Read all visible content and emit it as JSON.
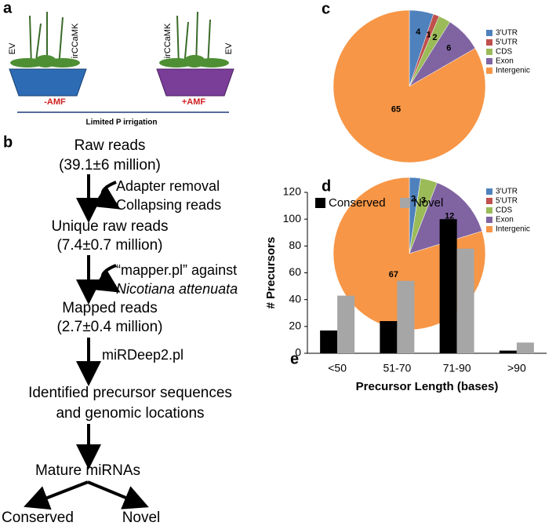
{
  "panel_labels": [
    "a",
    "b",
    "c",
    "d",
    "e"
  ],
  "panel_a": {
    "left_plants": [
      "EV",
      "irCCaMK"
    ],
    "right_plants": [
      "irCCaMK",
      "EV"
    ],
    "left_condition": "-AMF",
    "right_condition": "+AMF",
    "footer": "Limited P irrigation"
  },
  "panel_b": {
    "raw": [
      "Raw reads",
      "(39.1±6 million)"
    ],
    "step1": [
      "Adapter removal",
      "Collapsing reads"
    ],
    "unique": [
      "Unique raw reads",
      "(7.4±0.7 million)"
    ],
    "step2": [
      "“mapper.pl” against",
      "Nicotiana attenuata"
    ],
    "mapped": [
      "Mapped reads",
      "(2.7±0.4 million)"
    ],
    "step3": "miRDeep2.pl",
    "identified": [
      "Identified precursor sequences",
      "and genomic locations"
    ],
    "mature": "Mature miRNAs",
    "branches": [
      "Conserved",
      "Novel"
    ]
  },
  "chart_data": [
    {
      "type": "pie",
      "categories": [
        "3'UTR",
        "5'UTR",
        "CDS",
        "Exon",
        "Intergenic"
      ],
      "values": [
        4,
        1,
        2,
        6,
        65
      ],
      "colors": [
        "#4f81bd",
        "#c0504d",
        "#9bbb59",
        "#8064a2",
        "#f79646"
      ]
    },
    {
      "type": "pie",
      "categories": [
        "3'UTR",
        "5'UTR",
        "CDS",
        "Exon",
        "Intergenic"
      ],
      "values": [
        2,
        0,
        3,
        12,
        67
      ],
      "colors": [
        "#4f81bd",
        "#c0504d",
        "#9bbb59",
        "#8064a2",
        "#f79646"
      ]
    },
    {
      "type": "bar",
      "categories": [
        "<50",
        "51-70",
        "71-90",
        ">90"
      ],
      "series": [
        {
          "name": "Conserved",
          "color": "#000000",
          "values": [
            17,
            24,
            100,
            2
          ]
        },
        {
          "name": "Novel",
          "color": "#a6a6a6",
          "values": [
            43,
            54,
            78,
            8
          ]
        }
      ],
      "ylim": [
        0,
        120
      ],
      "yticks": [
        0,
        20,
        40,
        60,
        80,
        100,
        120
      ],
      "ylabel": "# Precursors",
      "xlabel": "Precursor Length (bases)"
    }
  ]
}
